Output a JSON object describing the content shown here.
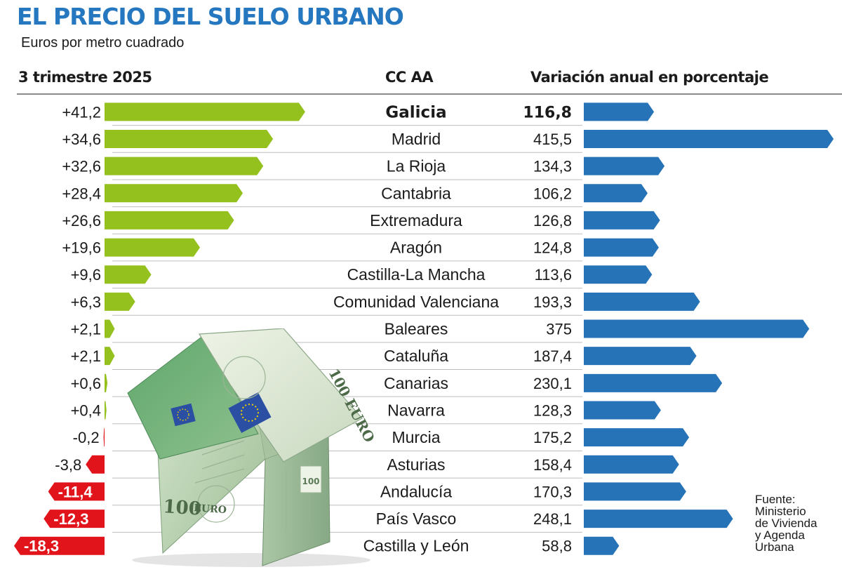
{
  "title": "EL PRECIO DEL SUELO URBANO",
  "subtitle": "Euros por metro cuadrado",
  "headers": {
    "left": "3 trimestre 2025",
    "center": "CC AA",
    "right": "Variación anual en porcentaje"
  },
  "source": {
    "lines": [
      "Fuente:",
      "Ministerio",
      "de Vivienda",
      "y Agenda",
      "Urbana"
    ]
  },
  "image_text": {
    "note_value": "100",
    "note_currency": "EURO",
    "note_big": "100 EURO"
  },
  "colors": {
    "title": "#2577c0",
    "positive_bar": "#95c11f",
    "negative_bar": "#e2141b",
    "variation_bar": "#2773b8",
    "row_rule": "#bdbdbd"
  },
  "chart_data": {
    "type": "bar",
    "categories": [
      "Galicia",
      "Madrid",
      "La Rioja",
      "Cantabria",
      "Extremadura",
      "Aragón",
      "Castilla-La Mancha",
      "Comunidad Valenciana",
      "Baleares",
      "Cataluña",
      "Canarias",
      "Navarra",
      "Murcia",
      "Asturias",
      "Andalucía",
      "País Vasco",
      "Castilla y León"
    ],
    "highlight": "Galicia",
    "series": [
      {
        "name": "3 trimestre 2025",
        "values": [
          41.2,
          34.6,
          32.6,
          28.4,
          26.6,
          19.6,
          9.6,
          6.3,
          2.1,
          2.1,
          0.6,
          0.4,
          -0.2,
          -3.8,
          -11.4,
          -12.3,
          -18.3
        ],
        "labels": [
          "+41,2",
          "+34,6",
          "+32,6",
          "+28,4",
          "+26,6",
          "+19,6",
          "+9,6",
          "+6,3",
          "+2,1",
          "+2,1",
          "+0,6",
          "+0,4",
          "-0,2",
          "-3,8",
          "-11,4",
          "-12,3",
          "-18,3"
        ]
      },
      {
        "name": "Variación anual en porcentaje",
        "values": [
          116.8,
          415.5,
          134.3,
          106.2,
          126.8,
          124.8,
          113.6,
          193.3,
          375,
          187.4,
          230.1,
          128.3,
          175.2,
          158.4,
          170.3,
          248.1,
          58.8
        ],
        "labels": [
          "116,8",
          "415,5",
          "134,3",
          "106,2",
          "126,8",
          "124,8",
          "113,6",
          "193,3",
          "375",
          "187,4",
          "230,1",
          "128,3",
          "175,2",
          "158,4",
          "170,3",
          "248,1",
          "58,8"
        ]
      }
    ]
  }
}
